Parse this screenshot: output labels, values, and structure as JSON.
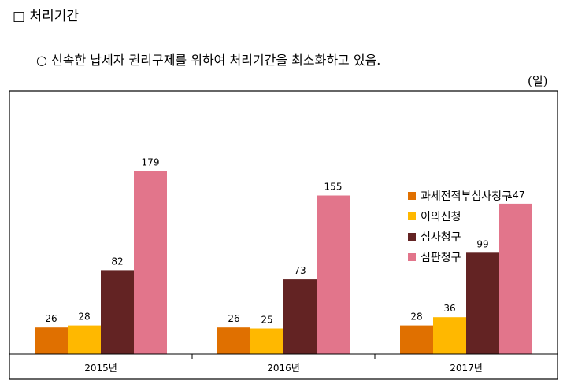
{
  "header": {
    "section_title": "□ 처리기간",
    "summary": "○ 신속한 납세자 권리구제를 위하여 처리기간을 최소화하고 있음."
  },
  "chart_data": {
    "type": "bar",
    "unit": "(일)",
    "categories": [
      "2015년",
      "2016년",
      "2017년"
    ],
    "series": [
      {
        "name": "과세전적부심사청구",
        "color": "#E07000",
        "values": [
          26,
          26,
          28
        ]
      },
      {
        "name": "이의신청",
        "color": "#FFB800",
        "values": [
          28,
          25,
          36
        ]
      },
      {
        "name": "심사청구",
        "color": "#632323",
        "values": [
          82,
          73,
          99
        ]
      },
      {
        "name": "심판청구",
        "color": "#E2758B",
        "values": [
          179,
          155,
          147
        ]
      }
    ],
    "ylim": [
      0,
      200
    ],
    "grid": false,
    "legend_position": "right"
  }
}
